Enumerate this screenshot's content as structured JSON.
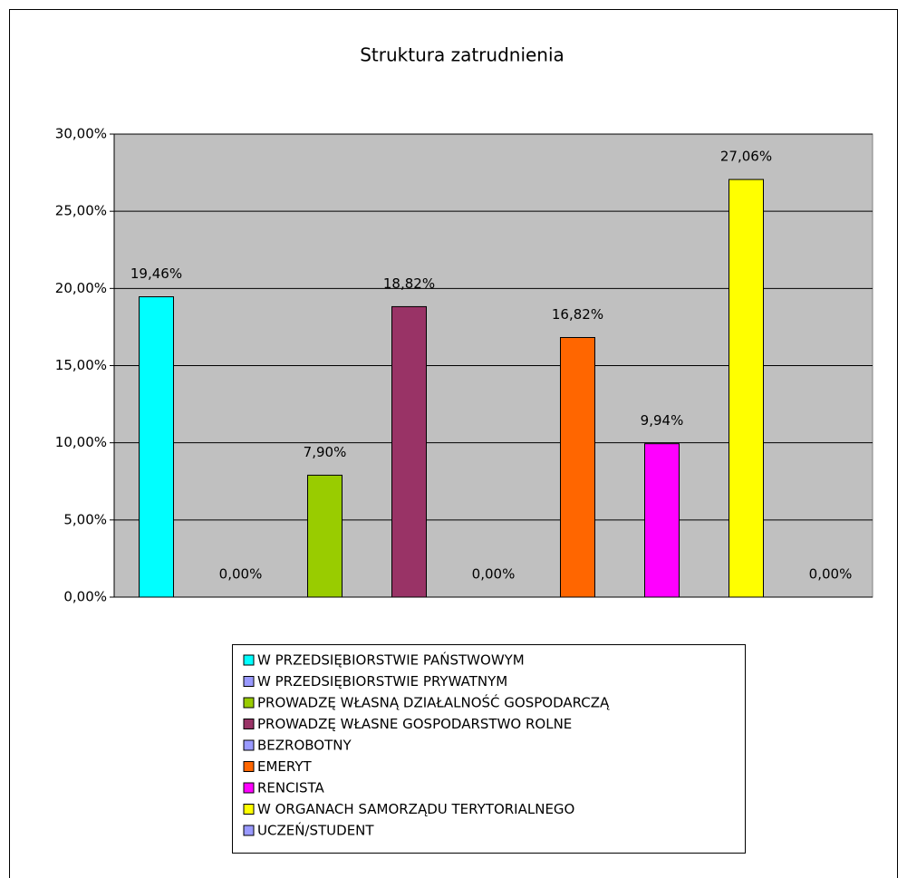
{
  "chart_data": {
    "type": "bar",
    "title": "Struktura zatrudnienia",
    "categories": [
      null
    ],
    "series": [
      {
        "name": "W PRZEDSIĘBIORSTWIE PAŃSTWOWYM",
        "color": "#00ffff",
        "values": [
          19.46
        ],
        "value_labels": [
          "19,46%"
        ]
      },
      {
        "name": "W PRZEDSIĘBIORSTWIE PRYWATNYM",
        "color": "#9999ff",
        "values": [
          0
        ],
        "value_labels": [
          "0,00%"
        ]
      },
      {
        "name": "PROWADZĘ WŁASNĄ DZIAŁALNOŚĆ GOSPODARCZĄ",
        "color": "#99cc00",
        "values": [
          7.9
        ],
        "value_labels": [
          "7,90%"
        ]
      },
      {
        "name": "PROWADZĘ WŁASNE GOSPODARSTWO ROLNE",
        "color": "#993366",
        "values": [
          18.82
        ],
        "value_labels": [
          "18,82%"
        ]
      },
      {
        "name": "BEZROBOTNY",
        "color": "#9999ff",
        "values": [
          0
        ],
        "value_labels": [
          "0,00%"
        ]
      },
      {
        "name": "EMERYT",
        "color": "#ff6600",
        "values": [
          16.82
        ],
        "value_labels": [
          "16,82%"
        ]
      },
      {
        "name": "RENCISTA",
        "color": "#ff00ff",
        "values": [
          9.94
        ],
        "value_labels": [
          "9,94%"
        ]
      },
      {
        "name": "W ORGANACH SAMORZĄDU TERYTORIALNEGO",
        "color": "#ffff00",
        "values": [
          27.06
        ],
        "value_labels": [
          "27,06%"
        ]
      },
      {
        "name": "UCZEŃ/STUDENT",
        "color": "#9999ff",
        "values": [
          0
        ],
        "value_labels": [
          "0,00%"
        ]
      }
    ],
    "ylim": [
      0,
      30
    ],
    "yticks": [
      {
        "value": 0,
        "label": "0,00%"
      },
      {
        "value": 5,
        "label": "5,00%"
      },
      {
        "value": 10,
        "label": "10,00%"
      },
      {
        "value": 15,
        "label": "15,00%"
      },
      {
        "value": 20,
        "label": "20,00%"
      },
      {
        "value": 25,
        "label": "25,00%"
      },
      {
        "value": 30,
        "label": "30,00%"
      }
    ],
    "grid": true,
    "plot_background": "#c0c0c0"
  }
}
